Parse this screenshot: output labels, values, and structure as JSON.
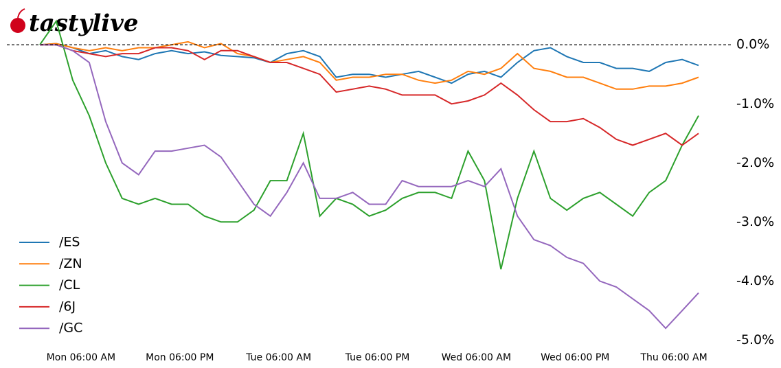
{
  "logo": "tastylive",
  "chart_data": {
    "type": "line",
    "x": [
      1,
      3,
      5,
      7,
      9,
      11,
      13,
      15,
      17,
      19,
      21,
      23,
      25,
      27,
      29,
      31,
      33,
      35,
      37,
      39,
      41,
      43,
      45,
      47,
      49,
      51,
      53,
      55,
      57,
      59,
      61,
      63,
      65,
      67,
      69,
      71,
      73,
      75,
      77,
      79,
      81
    ],
    "xlim": [
      -3,
      85
    ],
    "xticks": [
      {
        "value": 6,
        "label": "Mon 06:00 AM"
      },
      {
        "value": 18,
        "label": "Mon 06:00 PM"
      },
      {
        "value": 30,
        "label": "Tue 06:00 AM"
      },
      {
        "value": 42,
        "label": "Tue 06:00 PM"
      },
      {
        "value": 54,
        "label": "Wed 06:00 AM"
      },
      {
        "value": 66,
        "label": "Wed 06:00 PM"
      },
      {
        "value": 78,
        "label": "Thu 06:00 AM"
      }
    ],
    "ylim": [
      -5.1,
      0.7
    ],
    "yticks": [
      {
        "value": 0,
        "label": "0.0%"
      },
      {
        "value": -1,
        "label": "-1.0%"
      },
      {
        "value": -2,
        "label": "-2.0%"
      },
      {
        "value": -3,
        "label": "-3.0%"
      },
      {
        "value": -4,
        "label": "-4.0%"
      },
      {
        "value": -5,
        "label": "-5.0%"
      }
    ],
    "reference_line": 0,
    "legend": "lower left",
    "series": [
      {
        "name": "/ES",
        "color": "#1f77b4",
        "values": [
          0,
          0.02,
          -0.05,
          -0.15,
          -0.1,
          -0.2,
          -0.25,
          -0.15,
          -0.1,
          -0.15,
          -0.12,
          -0.18,
          -0.2,
          -0.22,
          -0.3,
          -0.15,
          -0.1,
          -0.2,
          -0.55,
          -0.5,
          -0.5,
          -0.55,
          -0.5,
          -0.45,
          -0.55,
          -0.65,
          -0.5,
          -0.45,
          -0.55,
          -0.3,
          -0.1,
          -0.05,
          -0.2,
          -0.3,
          -0.3,
          -0.4,
          -0.4,
          -0.45,
          -0.3,
          -0.25,
          -0.35
        ]
      },
      {
        "name": "/ZN",
        "color": "#ff7f0e",
        "values": [
          0,
          0.02,
          -0.05,
          -0.1,
          -0.05,
          -0.1,
          -0.05,
          -0.05,
          0,
          0.05,
          -0.05,
          0.02,
          -0.15,
          -0.2,
          -0.3,
          -0.25,
          -0.2,
          -0.3,
          -0.6,
          -0.55,
          -0.55,
          -0.5,
          -0.5,
          -0.6,
          -0.65,
          -0.6,
          -0.45,
          -0.5,
          -0.4,
          -0.15,
          -0.4,
          -0.45,
          -0.55,
          -0.55,
          -0.65,
          -0.75,
          -0.75,
          -0.7,
          -0.7,
          -0.65,
          -0.55
        ]
      },
      {
        "name": "/CL",
        "color": "#2ca02c",
        "values": [
          0,
          0.4,
          -0.6,
          -1.2,
          -2.0,
          -2.6,
          -2.7,
          -2.6,
          -2.7,
          -2.7,
          -2.9,
          -3.0,
          -3.0,
          -2.8,
          -2.3,
          -2.3,
          -1.5,
          -2.9,
          -2.6,
          -2.7,
          -2.9,
          -2.8,
          -2.6,
          -2.5,
          -2.5,
          -2.6,
          -1.8,
          -2.3,
          -3.8,
          -2.6,
          -1.8,
          -2.6,
          -2.8,
          -2.6,
          -2.5,
          -2.7,
          -2.9,
          -2.5,
          -2.3,
          -1.7,
          -1.2
        ]
      },
      {
        "name": "/6J",
        "color": "#d62728",
        "values": [
          0,
          0,
          -0.1,
          -0.15,
          -0.2,
          -0.15,
          -0.15,
          -0.05,
          -0.05,
          -0.1,
          -0.25,
          -0.1,
          -0.1,
          -0.2,
          -0.3,
          -0.3,
          -0.4,
          -0.5,
          -0.8,
          -0.75,
          -0.7,
          -0.75,
          -0.85,
          -0.85,
          -0.85,
          -1.0,
          -0.95,
          -0.85,
          -0.65,
          -0.85,
          -1.1,
          -1.3,
          -1.3,
          -1.25,
          -1.4,
          -1.6,
          -1.7,
          -1.6,
          -1.5,
          -1.7,
          -1.5
        ]
      },
      {
        "name": "/GC",
        "color": "#9467bd",
        "values": [
          0,
          0,
          -0.1,
          -0.3,
          -1.3,
          -2.0,
          -2.2,
          -1.8,
          -1.8,
          -1.75,
          -1.7,
          -1.9,
          -2.3,
          -2.7,
          -2.9,
          -2.5,
          -2.0,
          -2.6,
          -2.6,
          -2.5,
          -2.7,
          -2.7,
          -2.3,
          -2.4,
          -2.4,
          -2.4,
          -2.3,
          -2.4,
          -2.1,
          -2.9,
          -3.3,
          -3.4,
          -3.6,
          -3.7,
          -4.0,
          -4.1,
          -4.3,
          -4.5,
          -4.8,
          -4.5,
          -4.2
        ]
      }
    ]
  }
}
